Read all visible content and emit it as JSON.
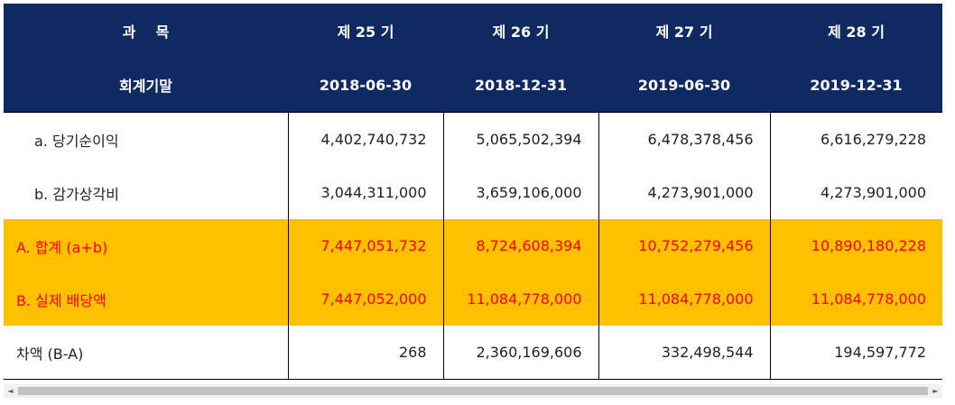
{
  "header": {
    "row1": {
      "label": "과    목",
      "periods": [
        "제 25 기",
        "제 26 기",
        "제 27 기",
        "제 28 기"
      ]
    },
    "row2": {
      "label": "회계기말",
      "dates": [
        "2018-06-30",
        "2018-12-31",
        "2019-06-30",
        "2019-12-31"
      ]
    }
  },
  "rows": [
    {
      "label": "a. 당기순이익",
      "values": [
        "4,402,740,732",
        "5,065,502,394",
        "6,478,378,456",
        "6,616,279,228"
      ]
    },
    {
      "label": "b. 감가상각비",
      "values": [
        "3,044,311,000",
        "3,659,106,000",
        "4,273,901,000",
        "4,273,901,000"
      ]
    },
    {
      "label": "A. 합계 (a+b)",
      "values": [
        "7,447,051,732",
        "8,724,608,394",
        "10,752,279,456",
        "10,890,180,228"
      ]
    },
    {
      "label": "B. 실제 배당액",
      "values": [
        "7,447,052,000",
        "11,084,778,000",
        "11,084,778,000",
        "11,084,778,000"
      ]
    },
    {
      "label": "차액 (B-A)",
      "values": [
        "268",
        "2,360,169,606",
        "332,498,544",
        "194,597,772"
      ]
    }
  ],
  "colors": {
    "header_bg": "#0f2a63",
    "highlight_bg": "#ffc000",
    "highlight_text": "#ff0000"
  },
  "scrollbar": {
    "left_arrow": "◄",
    "right_arrow": "►"
  }
}
